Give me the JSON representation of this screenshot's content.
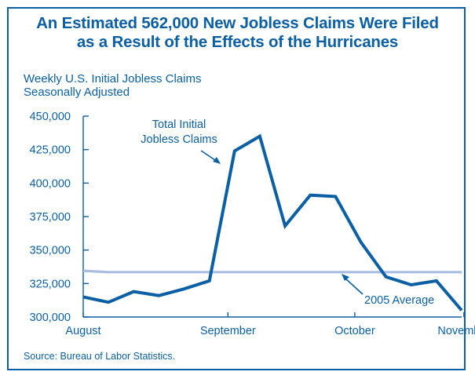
{
  "header": {
    "title_line1": "An Estimated 562,000 New Jobless Claims Were Filed",
    "title_line2": "as a Result of the Effects of the Hurricanes",
    "subtitle_line1": "Weekly U.S. Initial Jobless Claims",
    "subtitle_line2": "Seasonally Adjusted"
  },
  "footer": {
    "source": "Source: Bureau of Labor Statistics."
  },
  "colors": {
    "series": "#0b5fa5",
    "average": "#a9bde0",
    "axis": "#0b5fa5"
  },
  "chart_data": {
    "type": "line",
    "ylim": [
      300000,
      450000
    ],
    "yticks": [
      "450,000",
      "425,000",
      "400,000",
      "375,000",
      "350,000",
      "325,000",
      "300,000"
    ],
    "ytick_values": [
      450000,
      425000,
      400000,
      375000,
      350000,
      325000,
      300000
    ],
    "xtick_labels": [
      "August",
      "September",
      "October",
      "November"
    ],
    "x_count": 18,
    "xtick_index": [
      0,
      6.5,
      12.2,
      17.1
    ],
    "series": [
      {
        "name": "Total Initial Jobless Claims",
        "values": [
          315000,
          311000,
          319000,
          316000,
          321000,
          327000,
          424000,
          435000,
          368000,
          391000,
          390000,
          356000,
          330000,
          324000,
          327000,
          305000
        ]
      },
      {
        "name": "2005 Average",
        "values": [
          334500,
          333500,
          333500,
          333500,
          333500,
          333500,
          333500,
          333500,
          333500,
          333500,
          333500,
          333500,
          333500,
          333500,
          333500,
          333500
        ]
      }
    ],
    "annotations": [
      {
        "text_line1": "Total Initial",
        "text_line2": "Jobless Claims"
      },
      {
        "text": "2005 Average"
      }
    ]
  }
}
